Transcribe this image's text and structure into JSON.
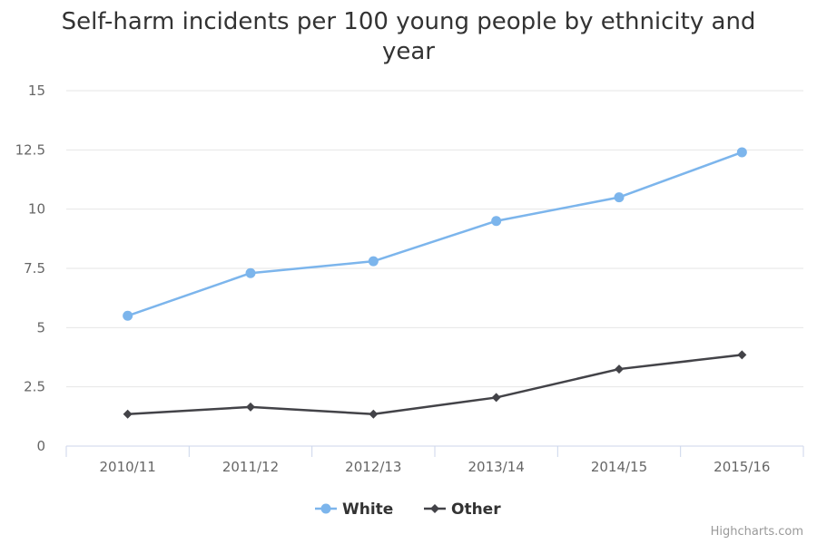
{
  "chart_data": {
    "type": "line",
    "title": "Self-harm incidents per 100 young people by ethnicity and year",
    "categories": [
      "2010/11",
      "2011/12",
      "2012/13",
      "2013/14",
      "2014/15",
      "2015/16"
    ],
    "yticks": [
      "0",
      "2.5",
      "5",
      "7.5",
      "10",
      "12.5",
      "15"
    ],
    "ylim": [
      0,
      15
    ],
    "grid": true,
    "legend_position": "bottom-center",
    "series": [
      {
        "name": "White",
        "values": [
          5.5,
          7.3,
          7.8,
          9.5,
          10.5,
          12.4
        ],
        "color": "#7cb5ec",
        "marker": "circle"
      },
      {
        "name": "Other",
        "values": [
          1.35,
          1.65,
          1.35,
          2.05,
          3.25,
          3.85
        ],
        "color": "#434348",
        "marker": "diamond"
      }
    ]
  },
  "credits": "Highcharts.com"
}
